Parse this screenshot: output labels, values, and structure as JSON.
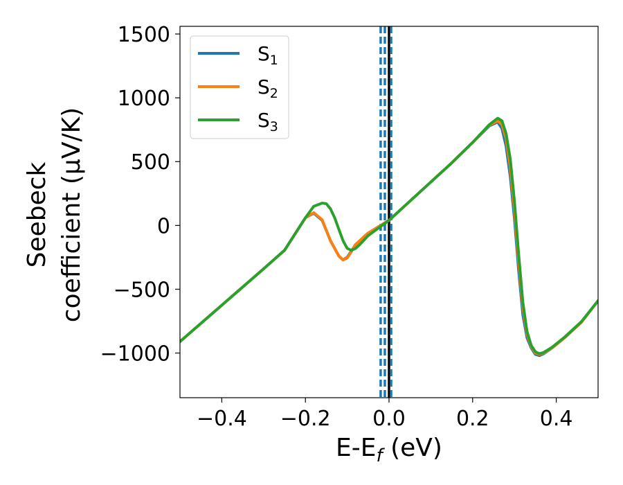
{
  "chart_data": {
    "type": "line",
    "xlabel_main": "E-E",
    "xlabel_sub": "f",
    "xlabel_unit": " (eV)",
    "ylabel_line1": "Seebeck",
    "ylabel_line2": "coefficient  (μV/K)",
    "xlim": [
      -0.5,
      0.5
    ],
    "ylim": [
      -1350,
      1560
    ],
    "xticks": [
      -0.4,
      -0.2,
      0.0,
      0.2,
      0.4
    ],
    "xtick_labels": [
      "−0.4",
      "−0.2",
      "0.0",
      "0.2",
      "0.4"
    ],
    "yticks": [
      -1000,
      -500,
      0,
      500,
      1000,
      1500
    ],
    "ytick_labels": [
      "−1000",
      "−500",
      "0",
      "500",
      "1000",
      "1500"
    ],
    "grid": false,
    "legend_position": "top-left",
    "vlines": [
      {
        "x": -0.02,
        "style": "dashed",
        "color": "#1f77b4"
      },
      {
        "x": -0.01,
        "style": "dashed",
        "color": "#1f77b4"
      },
      {
        "x": 0.0,
        "style": "solid",
        "color": "#000000"
      },
      {
        "x": 0.005,
        "style": "dashed",
        "color": "#1f77b4"
      }
    ],
    "series": [
      {
        "name": "S",
        "sub": "1",
        "color": "#1f77b4",
        "x": [
          -0.5,
          -0.4,
          -0.3,
          -0.25,
          -0.2,
          -0.18,
          -0.16,
          -0.14,
          -0.12,
          -0.11,
          -0.1,
          -0.09,
          -0.08,
          -0.07,
          -0.05,
          0.0,
          0.05,
          0.1,
          0.15,
          0.2,
          0.24,
          0.26,
          0.27,
          0.28,
          0.29,
          0.3,
          0.31,
          0.32,
          0.33,
          0.34,
          0.35,
          0.36,
          0.37,
          0.39,
          0.42,
          0.46,
          0.5
        ],
        "y": [
          -910,
          -625,
          -340,
          -195,
          60,
          95,
          40,
          -120,
          -240,
          -270,
          -250,
          -200,
          -150,
          -120,
          -60,
          40,
          190,
          340,
          490,
          650,
          780,
          810,
          760,
          620,
          380,
          50,
          -350,
          -700,
          -880,
          -960,
          -1010,
          -1020,
          -1005,
          -960,
          -880,
          -760,
          -590
        ]
      },
      {
        "name": "S",
        "sub": "2",
        "color": "#ff7f0e",
        "x": [
          -0.5,
          -0.4,
          -0.3,
          -0.25,
          -0.2,
          -0.18,
          -0.16,
          -0.14,
          -0.12,
          -0.11,
          -0.1,
          -0.09,
          -0.08,
          -0.07,
          -0.05,
          0.0,
          0.05,
          0.1,
          0.15,
          0.2,
          0.24,
          0.26,
          0.27,
          0.28,
          0.29,
          0.3,
          0.31,
          0.32,
          0.33,
          0.34,
          0.35,
          0.36,
          0.37,
          0.39,
          0.42,
          0.46,
          0.5
        ],
        "y": [
          -910,
          -625,
          -340,
          -195,
          60,
          100,
          45,
          -120,
          -240,
          -270,
          -255,
          -205,
          -150,
          -120,
          -60,
          40,
          190,
          340,
          490,
          650,
          785,
          820,
          790,
          680,
          450,
          120,
          -280,
          -640,
          -850,
          -950,
          -1000,
          -1010,
          -1000,
          -960,
          -880,
          -760,
          -590
        ]
      },
      {
        "name": "S",
        "sub": "3",
        "color": "#2ca02c",
        "x": [
          -0.5,
          -0.4,
          -0.3,
          -0.25,
          -0.2,
          -0.18,
          -0.16,
          -0.15,
          -0.14,
          -0.13,
          -0.12,
          -0.11,
          -0.1,
          -0.09,
          -0.08,
          -0.07,
          -0.05,
          0.0,
          0.05,
          0.1,
          0.15,
          0.2,
          0.24,
          0.26,
          0.27,
          0.28,
          0.29,
          0.3,
          0.31,
          0.32,
          0.33,
          0.34,
          0.35,
          0.36,
          0.37,
          0.39,
          0.42,
          0.46,
          0.5
        ],
        "y": [
          -910,
          -625,
          -340,
          -195,
          60,
          150,
          175,
          170,
          130,
          60,
          -30,
          -120,
          -180,
          -195,
          -180,
          -150,
          -80,
          40,
          190,
          340,
          490,
          650,
          790,
          840,
          820,
          720,
          520,
          190,
          -220,
          -600,
          -830,
          -940,
          -990,
          -1005,
          -995,
          -955,
          -875,
          -755,
          -590
        ]
      }
    ]
  }
}
